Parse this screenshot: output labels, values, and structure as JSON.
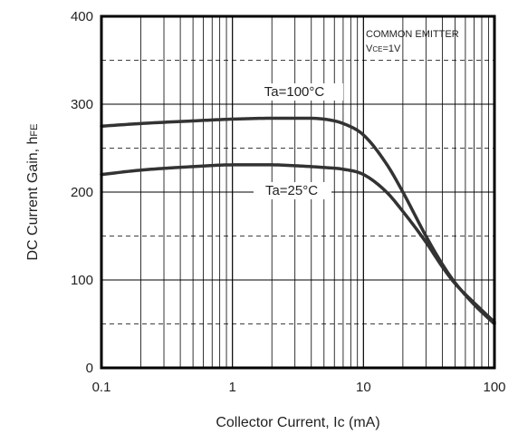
{
  "chart_data": {
    "type": "line",
    "xscale": "log",
    "xlim": [
      0.1,
      100
    ],
    "ylim": [
      0,
      400
    ],
    "xlabel": "Collector Current, Ic (mA)",
    "ylabel_main": "DC Current Gain, h",
    "ylabel_sub": "FE",
    "xticks": [
      {
        "value": 0.1,
        "label": "0.1"
      },
      {
        "value": 1,
        "label": "1"
      },
      {
        "value": 10,
        "label": "10"
      },
      {
        "value": 100,
        "label": "100"
      }
    ],
    "yticks": [
      {
        "value": 0,
        "label": "0"
      },
      {
        "value": 100,
        "label": "100"
      },
      {
        "value": 200,
        "label": "200"
      },
      {
        "value": 300,
        "label": "300"
      },
      {
        "value": 400,
        "label": "400"
      }
    ],
    "grid": {
      "x_minor_log": true,
      "y_major_solid": true,
      "y_half_dashed": true
    },
    "annotation": {
      "line1": "COMMON EMITTER",
      "line2_main": "V",
      "line2_sub": "CE",
      "line2_rest": "=1V"
    },
    "series": [
      {
        "name": "Ta=100°C",
        "x": [
          0.1,
          0.2,
          0.5,
          1,
          2,
          3,
          5,
          7,
          10,
          15,
          20,
          30,
          40,
          50,
          70,
          100
        ],
        "y": [
          275,
          278,
          281,
          283,
          284,
          284,
          283,
          278,
          265,
          232,
          200,
          150,
          118,
          97,
          72,
          50
        ]
      },
      {
        "name": "Ta=25°C",
        "x": [
          0.1,
          0.2,
          0.5,
          1,
          2,
          3,
          5,
          7,
          10,
          15,
          20,
          30,
          40,
          50,
          70,
          100
        ],
        "y": [
          220,
          225,
          229,
          231,
          231,
          230,
          228,
          226,
          220,
          200,
          178,
          143,
          115,
          96,
          74,
          52
        ]
      }
    ]
  }
}
